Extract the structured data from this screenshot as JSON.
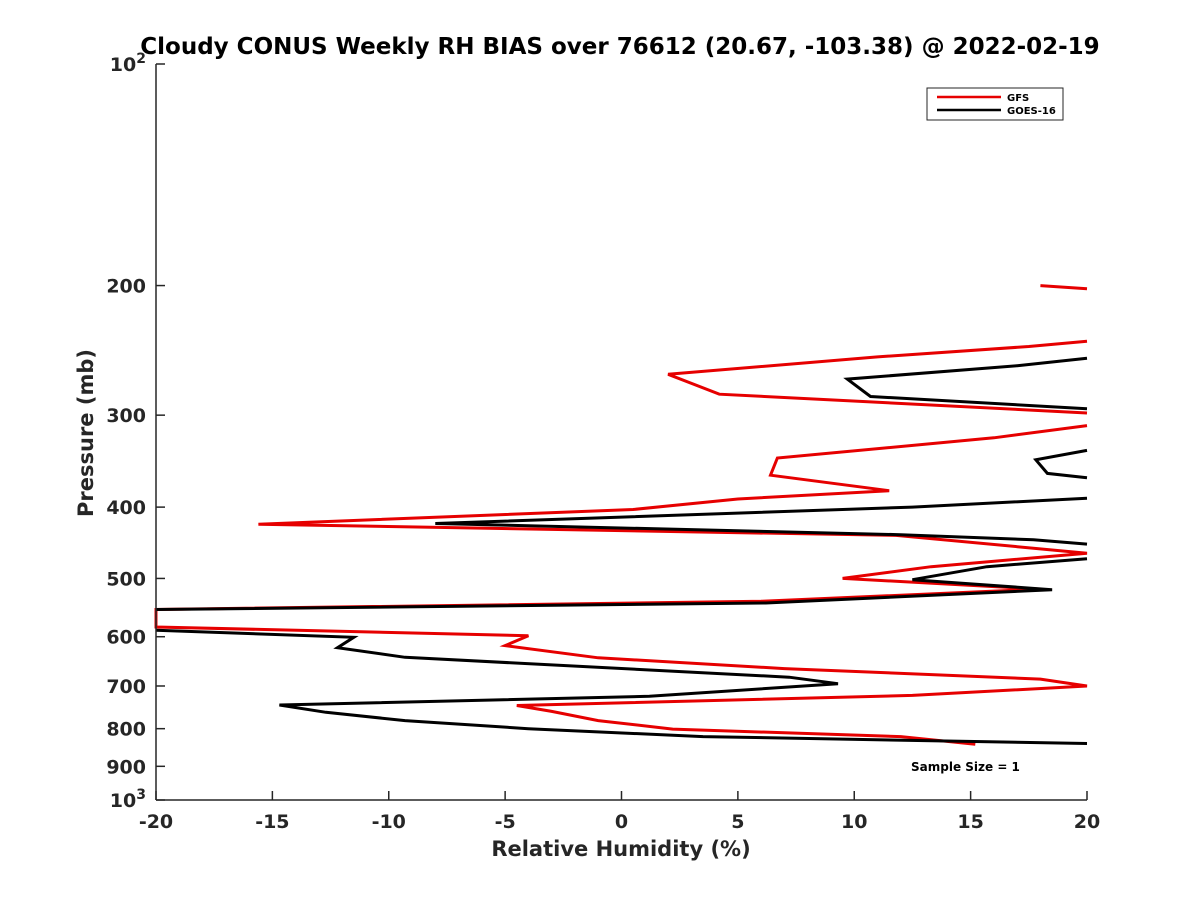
{
  "chart_data": {
    "type": "line",
    "title": "Cloudy CONUS Weekly RH BIAS over 76612 (20.67, -103.38) @ 2022-02-19",
    "xlabel": "Relative Humidity (%)",
    "ylabel": "Pressure (mb)",
    "xlim": [
      -20,
      20
    ],
    "ylim": [
      100,
      1000
    ],
    "yscale": "log",
    "y_reversed": true,
    "grid": false,
    "legend_position": "top-right",
    "annotation": "Sample Size = 1",
    "x_ticks": [
      "-20",
      "-15",
      "-10",
      "-5",
      "0",
      "5",
      "10",
      "15",
      "20"
    ],
    "y_ticks": [
      {
        "value": 100,
        "label": "10",
        "sup": "2"
      },
      {
        "value": 200,
        "label": "200",
        "sup": ""
      },
      {
        "value": 300,
        "label": "300",
        "sup": ""
      },
      {
        "value": 400,
        "label": "400",
        "sup": ""
      },
      {
        "value": 500,
        "label": "500",
        "sup": ""
      },
      {
        "value": 600,
        "label": "600",
        "sup": ""
      },
      {
        "value": 700,
        "label": "700",
        "sup": ""
      },
      {
        "value": 800,
        "label": "800",
        "sup": ""
      },
      {
        "value": 900,
        "label": "900",
        "sup": ""
      },
      {
        "value": 1000,
        "label": "10",
        "sup": "3"
      }
    ],
    "series": [
      {
        "name": "GFS",
        "color": "#e60000",
        "points": [
          [
            18,
            200
          ],
          [
            20,
            202
          ],
          null,
          [
            20,
            238
          ],
          [
            17.5,
            242
          ],
          [
            11,
            250
          ],
          [
            2,
            264
          ],
          [
            4.2,
            281
          ],
          [
            20,
            298
          ],
          null,
          [
            20,
            310
          ],
          [
            16,
            322
          ],
          [
            6.7,
            343
          ],
          [
            6.4,
            362
          ],
          [
            11.5,
            380
          ],
          [
            5,
            390
          ],
          [
            0.5,
            403
          ],
          [
            -15.6,
            422
          ],
          [
            11.8,
            437
          ],
          [
            20,
            462
          ],
          [
            13.3,
            482
          ],
          [
            9.5,
            500
          ],
          [
            18,
            517
          ],
          [
            6,
            537
          ],
          [
            -20,
            551
          ],
          [
            -20,
            582
          ],
          [
            -4,
            598
          ],
          [
            -5,
            617
          ],
          [
            -1,
            641
          ],
          [
            7,
            663
          ],
          [
            18,
            685
          ],
          [
            20,
            700
          ],
          [
            12.5,
            721
          ],
          [
            -4.5,
            744
          ],
          [
            -3,
            758
          ],
          [
            -1,
            780
          ],
          [
            2.2,
            801
          ],
          [
            12,
            820
          ],
          [
            15.2,
            840
          ]
        ]
      },
      {
        "name": "GOES-16",
        "color": "#000000",
        "points": [
          [
            20,
            251
          ],
          [
            17,
            257
          ],
          [
            9.7,
            268
          ],
          [
            10.7,
            283
          ],
          [
            20,
            294
          ],
          null,
          [
            20,
            335
          ],
          [
            17.8,
            345
          ],
          [
            18.3,
            360
          ],
          [
            20,
            365
          ],
          null,
          [
            20,
            389
          ],
          [
            12.5,
            400
          ],
          [
            -8,
            421
          ],
          [
            12,
            436
          ],
          [
            17.7,
            443
          ],
          [
            20,
            449
          ],
          null,
          [
            20,
            470
          ],
          [
            15.7,
            482
          ],
          [
            12.5,
            502
          ],
          [
            18.5,
            518
          ],
          [
            6.2,
            540
          ],
          [
            -20,
            551
          ],
          null,
          [
            -20,
            588
          ],
          [
            -11.5,
            601
          ],
          [
            -12.2,
            621
          ],
          [
            -9.3,
            640
          ],
          [
            7.2,
            681
          ],
          [
            9.3,
            695
          ],
          [
            1.2,
            723
          ],
          [
            -14.7,
            743
          ],
          [
            -12.7,
            760
          ],
          [
            -9.3,
            780
          ],
          [
            -4,
            800
          ],
          [
            3.5,
            820
          ],
          [
            20,
            838
          ]
        ]
      }
    ]
  }
}
